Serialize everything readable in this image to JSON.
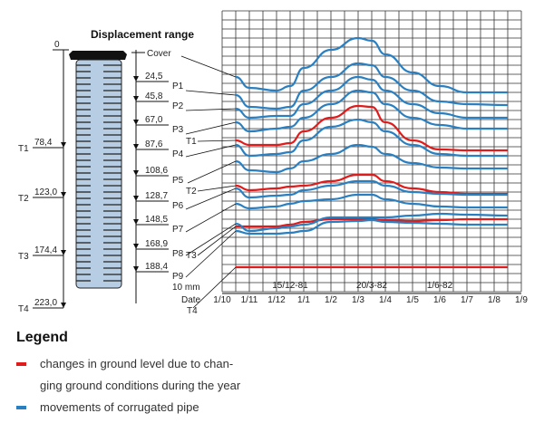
{
  "title": "Displacement range",
  "left_axis": {
    "zero": "0",
    "marks": [
      {
        "label": "T1",
        "value": "78,4"
      },
      {
        "label": "T2",
        "value": "123,0"
      },
      {
        "label": "T3",
        "value": "174,4"
      },
      {
        "label": "T4",
        "value": "223,0"
      }
    ]
  },
  "right_axis": {
    "cover": "Cover",
    "marks": [
      {
        "label": "P1",
        "value": "24,5"
      },
      {
        "label": "P2",
        "value": "45,8"
      },
      {
        "label": "P3",
        "value": "67,0"
      },
      {
        "label": "P4",
        "value": "87,6"
      },
      {
        "label": "P5",
        "value": "108,6"
      },
      {
        "label": "P6",
        "value": "128,7"
      },
      {
        "label": "P7",
        "value": "148,5"
      },
      {
        "label": "P8",
        "value": "168,9"
      },
      {
        "label": "P9",
        "value": "188,4"
      }
    ],
    "t_labels": [
      "T1",
      "T2",
      "T3",
      "T4"
    ]
  },
  "scale_label": "10 mm",
  "date_label": "Date",
  "colors": {
    "pipe": "#2a7fc0",
    "ground": "#e01b1b",
    "grid": "#333333",
    "pipe_fill": "#b7cde3"
  },
  "chart_data": {
    "type": "line",
    "x_ticks": [
      "1/10",
      "1/11",
      "1/12",
      "1/1",
      "1/2",
      "1/3",
      "1/4",
      "1/5",
      "1/6",
      "1/7",
      "1/8",
      "1/9"
    ],
    "date_annotations": [
      "15/12-81",
      "20/3-82",
      "1/6-82"
    ],
    "x_unit": "months after 1/10 (1981)",
    "y_unit": "mm (relative, downward positive, 10 mm per grid row)",
    "x": [
      0.5,
      1,
      2,
      2.5,
      3,
      4,
      5,
      5.5,
      6,
      7,
      8,
      9,
      10.5
    ],
    "series": [
      {
        "name": "Cover",
        "kind": "pipe",
        "values": [
          85,
          97,
          100,
          95,
          75,
          55,
          42,
          45,
          60,
          80,
          95,
          102,
          102
        ]
      },
      {
        "name": "P1",
        "kind": "pipe",
        "values": [
          105,
          118,
          120,
          118,
          100,
          85,
          70,
          72,
          85,
          100,
          112,
          115,
          116
        ]
      },
      {
        "name": "P2",
        "kind": "pipe",
        "values": [
          120,
          130,
          128,
          128,
          115,
          100,
          85,
          88,
          100,
          115,
          125,
          130,
          130
        ]
      },
      {
        "name": "P3",
        "kind": "pipe",
        "values": [
          135,
          145,
          142,
          140,
          130,
          115,
          100,
          102,
          115,
          130,
          138,
          142,
          142
        ]
      },
      {
        "name": "T1",
        "kind": "ground",
        "values": [
          155,
          160,
          160,
          158,
          145,
          130,
          117,
          118,
          135,
          155,
          165,
          166,
          166
        ]
      },
      {
        "name": "P4",
        "kind": "pipe",
        "values": [
          160,
          172,
          170,
          168,
          155,
          140,
          132,
          135,
          145,
          160,
          170,
          172,
          172
        ]
      },
      {
        "name": "P5",
        "kind": "pipe",
        "values": [
          178,
          188,
          190,
          186,
          178,
          170,
          160,
          162,
          170,
          180,
          185,
          186,
          186
        ]
      },
      {
        "name": "T2",
        "kind": "ground",
        "values": [
          205,
          210,
          208,
          206,
          205,
          200,
          193,
          193,
          200,
          208,
          212,
          214,
          214
        ]
      },
      {
        "name": "P6",
        "kind": "pipe",
        "values": [
          208,
          218,
          216,
          215,
          210,
          205,
          200,
          200,
          205,
          212,
          214,
          215,
          215
        ]
      },
      {
        "name": "P7",
        "kind": "pipe",
        "values": [
          225,
          230,
          228,
          225,
          222,
          220,
          215,
          215,
          220,
          225,
          228,
          229,
          229
        ]
      },
      {
        "name": "T3",
        "kind": "ground",
        "values": [
          250,
          250,
          250,
          248,
          245,
          242,
          242,
          242,
          243,
          244,
          243,
          242,
          242
        ]
      },
      {
        "name": "P8",
        "kind": "pipe",
        "values": [
          247,
          255,
          252,
          250,
          248,
          240,
          240,
          240,
          240,
          238,
          236,
          237,
          238
        ]
      },
      {
        "name": "P9",
        "kind": "pipe",
        "values": [
          255,
          258,
          258,
          257,
          255,
          245,
          244,
          243,
          245,
          246,
          247,
          248,
          248
        ]
      },
      {
        "name": "T4",
        "kind": "ground",
        "values": [
          295,
          295,
          295,
          295,
          295,
          295,
          295,
          295,
          295,
          295,
          295,
          295,
          295
        ]
      }
    ]
  },
  "legend": {
    "title": "Legend",
    "items": [
      {
        "text": "changes in ground level due to chan-",
        "color": "#e01b1b"
      },
      {
        "text": "ging ground conditions during the year",
        "color": ""
      },
      {
        "text": "movements of corrugated pipe",
        "color": "#2a7fc0"
      }
    ]
  }
}
